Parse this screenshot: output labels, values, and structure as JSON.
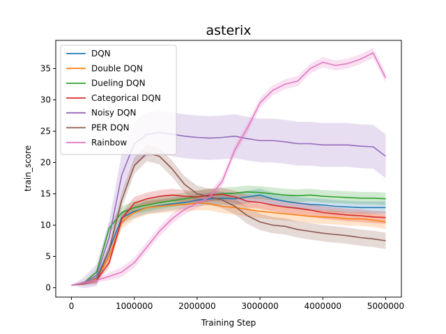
{
  "chart_data": {
    "type": "line",
    "title": "asterix",
    "xlabel": "Training Step",
    "ylabel": "train_score",
    "xlim": [
      -250000,
      5250000
    ],
    "ylim": [
      -1.5,
      39.5
    ],
    "xticks": [
      0,
      1000000,
      2000000,
      3000000,
      4000000,
      5000000
    ],
    "xtick_labels": [
      "0",
      "1000000",
      "2000000",
      "3000000",
      "4000000",
      "5000000"
    ],
    "yticks": [
      0,
      5,
      10,
      15,
      20,
      25,
      30,
      35
    ],
    "ytick_labels": [
      "0",
      "5",
      "10",
      "15",
      "20",
      "25",
      "30",
      "35"
    ],
    "grid": false,
    "legend_position": "top-left",
    "x": [
      0,
      200000,
      400000,
      600000,
      800000,
      1000000,
      1200000,
      1400000,
      1600000,
      1800000,
      2000000,
      2200000,
      2400000,
      2600000,
      2800000,
      3000000,
      3200000,
      3400000,
      3600000,
      3800000,
      4000000,
      4200000,
      4400000,
      4600000,
      4800000,
      5000000
    ],
    "series": [
      {
        "name": "DQN",
        "color": "#1f77b4",
        "band": 1.0,
        "values": [
          0.4,
          0.7,
          1.5,
          6.0,
          11.2,
          12.2,
          12.8,
          13.1,
          13.4,
          13.6,
          14.0,
          14.2,
          14.3,
          14.2,
          14.5,
          14.8,
          14.2,
          13.8,
          13.5,
          13.3,
          13.2,
          13.0,
          12.9,
          12.8,
          12.8,
          12.8
        ]
      },
      {
        "name": "Double DQN",
        "color": "#ff7f0e",
        "band": 1.1,
        "values": [
          0.4,
          0.7,
          1.4,
          5.0,
          10.5,
          12.0,
          12.8,
          13.0,
          13.2,
          13.3,
          13.5,
          13.4,
          13.0,
          12.8,
          12.5,
          12.2,
          12.0,
          11.8,
          11.6,
          11.4,
          11.3,
          11.2,
          11.0,
          11.0,
          10.8,
          10.5
        ]
      },
      {
        "name": "Dueling DQN",
        "color": "#2ca02c",
        "band": 1.0,
        "values": [
          0.4,
          0.8,
          2.5,
          9.5,
          12.0,
          12.8,
          13.2,
          13.6,
          13.9,
          14.2,
          14.5,
          14.8,
          15.0,
          15.1,
          15.3,
          15.2,
          15.0,
          14.8,
          14.7,
          14.8,
          14.6,
          14.5,
          14.4,
          14.3,
          14.3,
          14.2
        ]
      },
      {
        "name": "Categorical DQN",
        "color": "#d62728",
        "band": 1.0,
        "values": [
          0.4,
          0.7,
          1.2,
          4.0,
          11.0,
          13.5,
          14.2,
          14.6,
          14.8,
          14.6,
          14.5,
          14.8,
          14.9,
          14.5,
          13.8,
          13.6,
          13.2,
          12.9,
          12.7,
          12.4,
          12.0,
          11.8,
          11.6,
          11.5,
          11.3,
          11.2
        ]
      },
      {
        "name": "Noisy DQN",
        "color": "#9467bd",
        "band": 3.5,
        "values": [
          0.4,
          0.8,
          2.0,
          8.0,
          18.0,
          23.0,
          24.5,
          24.8,
          24.5,
          24.2,
          24.0,
          23.9,
          24.0,
          24.2,
          23.8,
          23.5,
          23.5,
          23.3,
          23.0,
          23.0,
          22.8,
          22.8,
          22.8,
          22.6,
          22.5,
          21.0
        ]
      },
      {
        "name": "PER DQN",
        "color": "#8c564b",
        "band": 1.3,
        "values": [
          0.4,
          0.7,
          1.2,
          6.0,
          14.0,
          19.5,
          21.5,
          21.0,
          19.0,
          16.5,
          15.0,
          14.5,
          14.0,
          13.0,
          11.5,
          10.5,
          10.0,
          9.8,
          9.3,
          9.0,
          8.7,
          8.5,
          8.3,
          8.0,
          7.8,
          7.5
        ]
      },
      {
        "name": "Rainbow",
        "color": "#e377c2",
        "band": 0.8,
        "values": [
          0.4,
          0.8,
          1.2,
          1.8,
          2.5,
          4.0,
          6.5,
          9.0,
          11.0,
          12.5,
          13.5,
          14.5,
          17.0,
          22.0,
          25.5,
          29.5,
          31.5,
          32.5,
          33.0,
          35.0,
          36.0,
          35.5,
          35.8,
          36.5,
          37.5,
          33.5
        ]
      }
    ]
  }
}
